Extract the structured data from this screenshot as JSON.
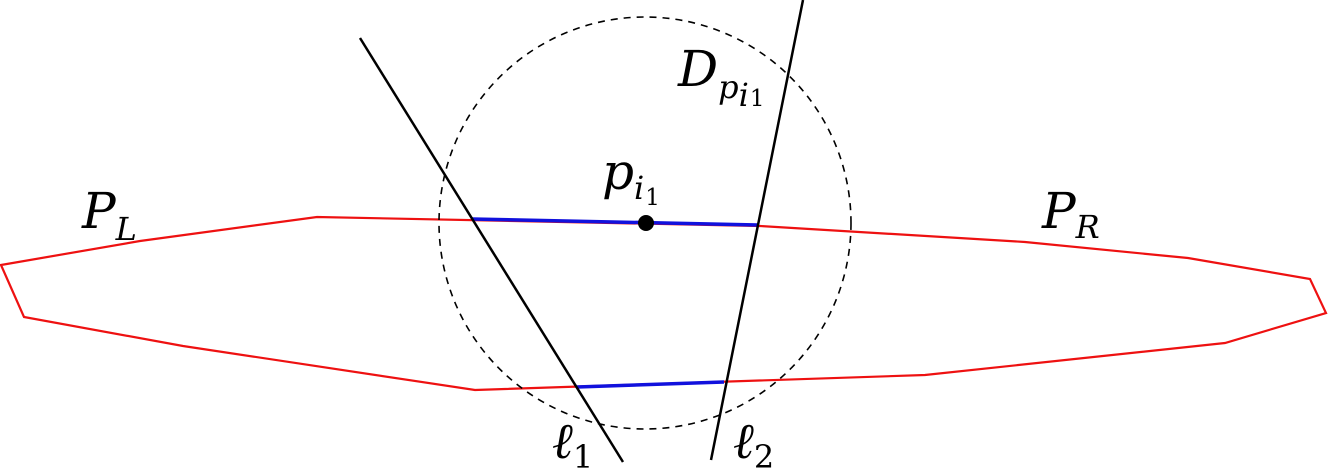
{
  "labels": {
    "polygon_left": {
      "main": "P",
      "sub": "L"
    },
    "polygon_right": {
      "main": "P",
      "sub": "R"
    },
    "disk": {
      "main": "D",
      "sub": "p",
      "subsub_i": "i",
      "subsub_n": "1"
    },
    "point": {
      "main": "p",
      "sub": "i",
      "subsub": "1"
    },
    "line1": {
      "main": "ℓ",
      "sub": "1"
    },
    "line2": {
      "main": "ℓ",
      "sub": "2"
    }
  },
  "colors": {
    "polygon": "#ee1111",
    "segments": "#1111dd",
    "lines": "#000000",
    "circle": "#000000",
    "point": "#000000"
  }
}
